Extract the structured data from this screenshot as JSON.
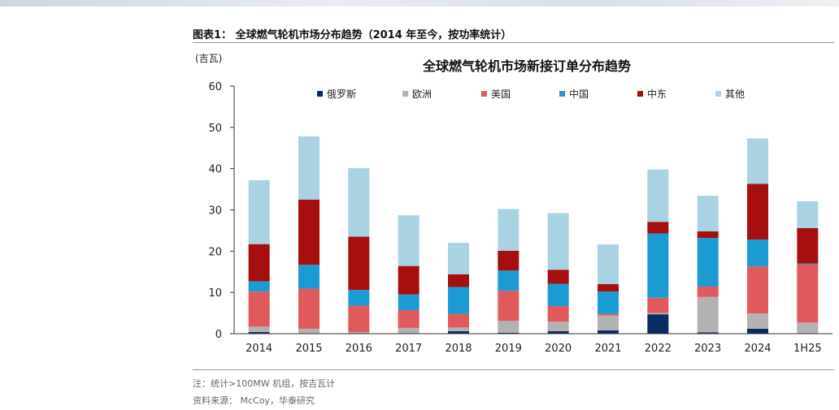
{
  "header": {
    "figure_title": "图表1：  全球燃气轮机市场分布趋势（2014 年至今，按功率统计）"
  },
  "footer": {
    "note": "注：统计>100MW 机组，按吉瓦计",
    "source": "资料来源：  McCoy，华泰研究"
  },
  "colors": {
    "俄罗斯": "#0b2b63",
    "欧洲": "#b2b2b2",
    "美国": "#e05a5d",
    "中国": "#1b9bd2",
    "中东": "#a50f0f",
    "其他": "#a9d2e3"
  },
  "chart_data": {
    "type": "bar",
    "stacked": true,
    "title": "全球燃气轮机市场新接订单分布趋势",
    "unit_label": "(吉瓦)",
    "categories": [
      "2014",
      "2015",
      "2016",
      "2017",
      "2018",
      "2019",
      "2020",
      "2021",
      "2022",
      "2023",
      "2024",
      "1H25"
    ],
    "ylim": [
      0,
      60
    ],
    "yticks": [
      0,
      10,
      20,
      30,
      40,
      50,
      60
    ],
    "grid": false,
    "legend": "top",
    "series": [
      {
        "name": "俄罗斯",
        "values": [
          0.4,
          0.1,
          0.1,
          0.1,
          0.6,
          0.2,
          0.6,
          0.8,
          4.7,
          0.3,
          1.2,
          0.1
        ]
      },
      {
        "name": "欧洲",
        "values": [
          1.3,
          1.1,
          0.3,
          1.3,
          0.9,
          2.9,
          2.3,
          3.6,
          0.3,
          8.6,
          3.7,
          2.6
        ]
      },
      {
        "name": "美国",
        "values": [
          8.5,
          9.7,
          6.4,
          4.3,
          3.3,
          7.3,
          3.8,
          0.4,
          3.7,
          2.5,
          11.4,
          14.1
        ]
      },
      {
        "name": "中国",
        "values": [
          2.5,
          5.8,
          3.8,
          3.8,
          6.5,
          4.9,
          5.4,
          5.4,
          15.6,
          11.8,
          6.5,
          0.2
        ]
      },
      {
        "name": "中东",
        "values": [
          9.0,
          15.8,
          12.9,
          6.9,
          3.1,
          4.8,
          3.4,
          1.8,
          2.8,
          1.6,
          13.5,
          8.6
        ]
      },
      {
        "name": "其他",
        "values": [
          15.5,
          15.3,
          16.6,
          12.3,
          7.6,
          10.1,
          13.7,
          9.6,
          12.7,
          8.6,
          11.0,
          6.5
        ]
      }
    ]
  }
}
